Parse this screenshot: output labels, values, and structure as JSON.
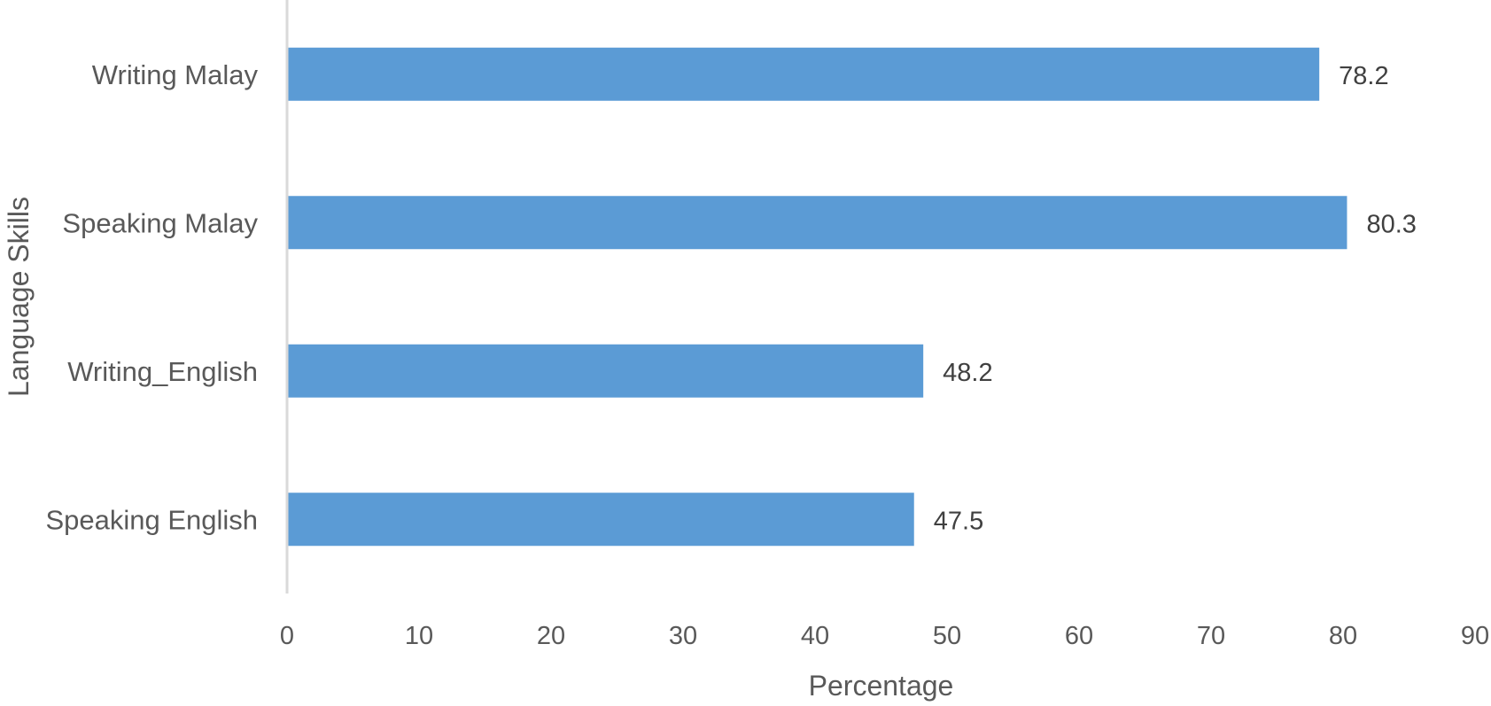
{
  "chart_data": {
    "type": "bar",
    "orientation": "horizontal",
    "categories": [
      "Writing Malay",
      "Speaking Malay",
      "Writing_English",
      "Speaking English"
    ],
    "values": [
      78.2,
      80.3,
      48.2,
      47.5
    ],
    "data_labels": [
      "78.2",
      "80.3",
      "48.2",
      "47.5"
    ],
    "xlabel": "Percentage",
    "ylabel": "Language Skills",
    "xlim": [
      0,
      90
    ],
    "x_ticks": [
      0,
      10,
      20,
      30,
      40,
      50,
      60,
      70,
      80,
      90
    ],
    "grid": false,
    "legend": "none",
    "colors": {
      "bar": "#5b9bd5",
      "axis": "#d9d9d9"
    }
  }
}
